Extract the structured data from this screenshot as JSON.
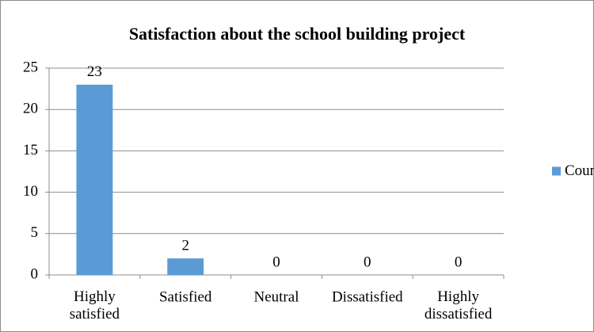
{
  "chart_data": {
    "type": "bar",
    "title": "Satisfaction about the school building project",
    "categories": [
      "Highly satisfied",
      "Satisfied",
      "Neutral",
      "Dissatisfied",
      "Highly dissatisfied"
    ],
    "series": [
      {
        "name": "Count",
        "color": "#5b9bd5",
        "values": [
          23,
          2,
          0,
          0,
          0
        ]
      }
    ],
    "ylim": [
      0,
      25
    ],
    "yticks": [
      0,
      5,
      10,
      15,
      20,
      25
    ],
    "grid": true,
    "legend": "right"
  }
}
